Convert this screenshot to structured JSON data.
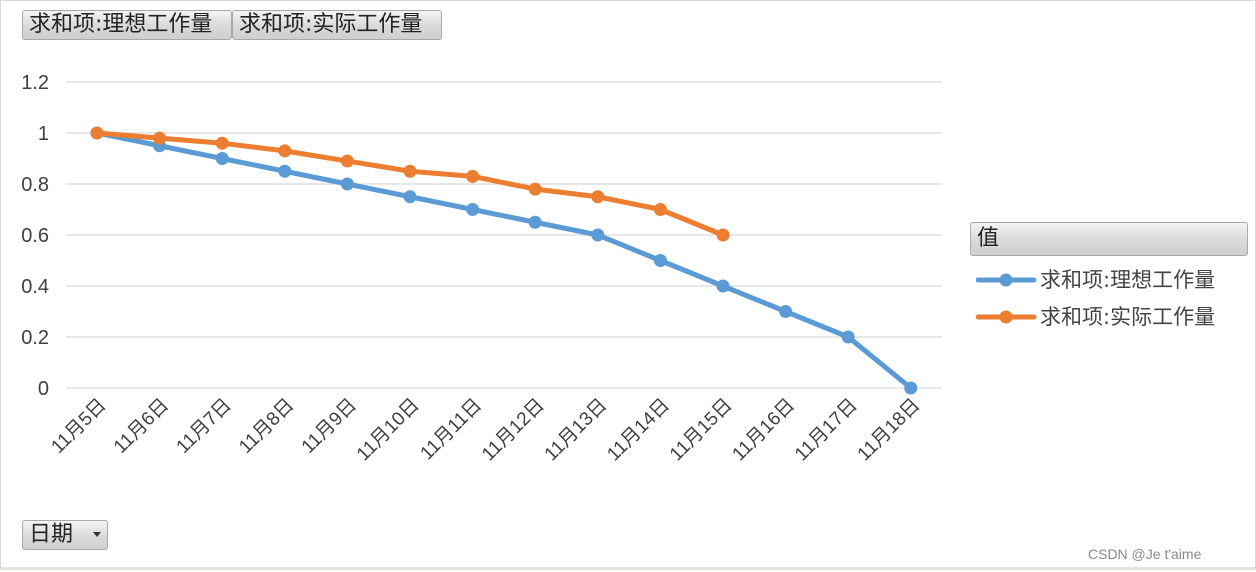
{
  "field_buttons": {
    "ideal": "求和项:理想工作量",
    "actual": "求和项:实际工作量",
    "axis_field": "日期"
  },
  "legend": {
    "header": "值",
    "items": [
      {
        "label": "求和项:理想工作量",
        "color": "#5b9bd5"
      },
      {
        "label": "求和项:实际工作量",
        "color": "#ed7d31"
      }
    ]
  },
  "watermark": "CSDN @Je t'aime",
  "chart_data": {
    "type": "line",
    "categories": [
      "11月5日",
      "11月6日",
      "11月7日",
      "11月8日",
      "11月9日",
      "11月10日",
      "11月11日",
      "11月12日",
      "11月13日",
      "11月14日",
      "11月15日",
      "11月16日",
      "11月17日",
      "11月18日"
    ],
    "series": [
      {
        "name": "求和项:理想工作量",
        "color": "#5b9bd5",
        "values": [
          1,
          0.95,
          0.9,
          0.85,
          0.8,
          0.75,
          0.7,
          0.65,
          0.6,
          0.5,
          0.4,
          0.3,
          0.2,
          0
        ]
      },
      {
        "name": "求和项:实际工作量",
        "color": "#ed7d31",
        "values": [
          1,
          0.98,
          0.96,
          0.93,
          0.89,
          0.85,
          0.83,
          0.78,
          0.75,
          0.7,
          0.6,
          null,
          null,
          null
        ]
      }
    ],
    "yticks": [
      "0",
      "0.2",
      "0.4",
      "0.6",
      "0.8",
      "1",
      "1.2"
    ],
    "ylim": [
      0,
      1.2
    ],
    "grid": true,
    "legend_position": "right",
    "title": "",
    "xlabel": "",
    "ylabel": ""
  }
}
